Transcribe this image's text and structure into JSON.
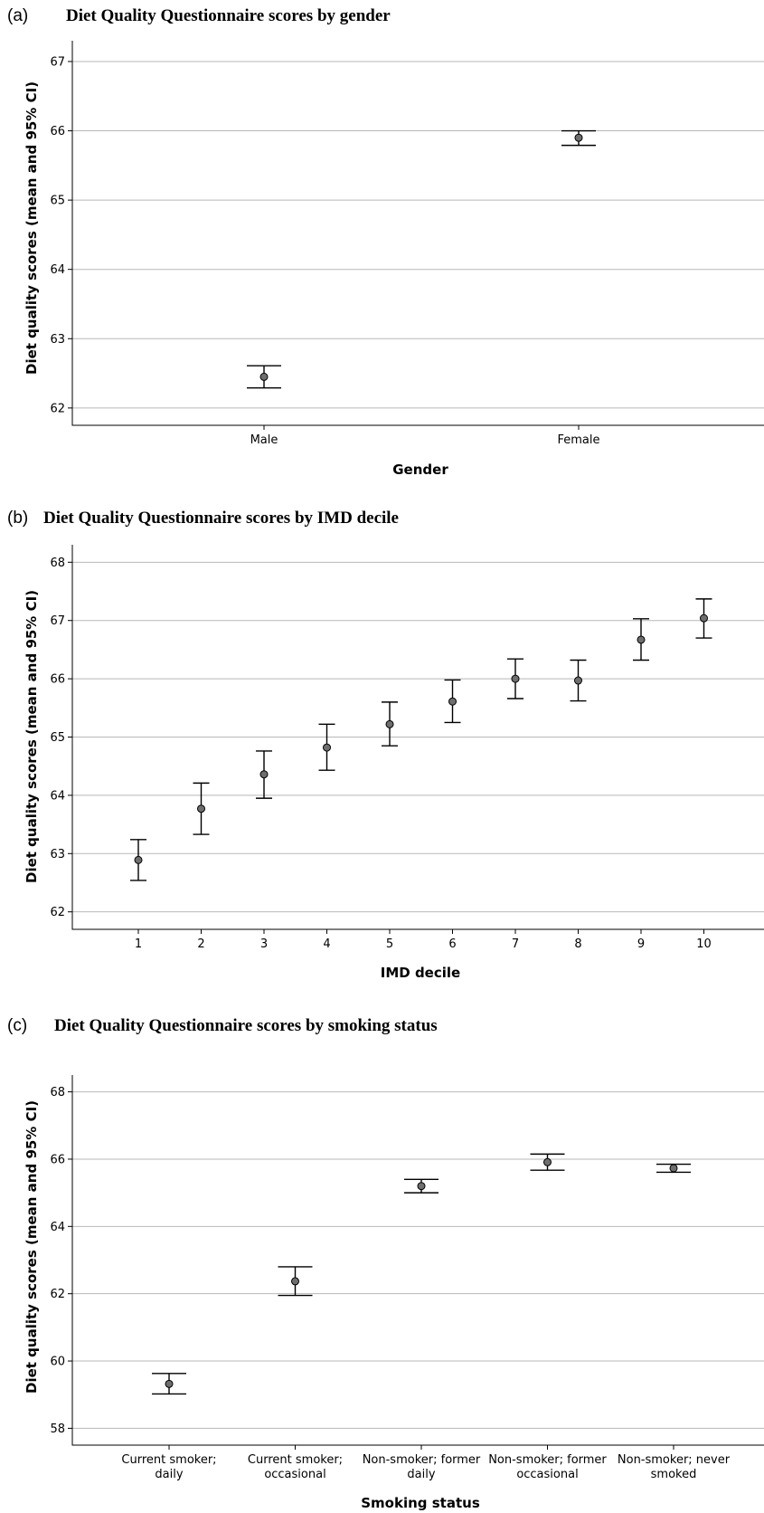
{
  "chart_data": [
    {
      "type": "scatter",
      "panel": "(a)",
      "title": "Diet Quality Questionnaire scores by gender",
      "xlabel": "Gender",
      "ylabel": "Diet quality scores (mean and 95% CI)",
      "ylim": [
        61.75,
        67.3
      ],
      "yticks": [
        62,
        63,
        64,
        65,
        66,
        67
      ],
      "grid": true,
      "categories": [
        "Male",
        "Female"
      ],
      "means": [
        62.45,
        65.9
      ],
      "ci_lower": [
        62.29,
        65.79
      ],
      "ci_upper": [
        62.61,
        66.0
      ]
    },
    {
      "type": "scatter",
      "panel": "(b)",
      "title": "Diet Quality Questionnaire scores by IMD decile",
      "xlabel": "IMD decile",
      "ylabel": "Diet quality scores (mean and 95% CI)",
      "ylim": [
        61.7,
        68.3
      ],
      "yticks": [
        62,
        63,
        64,
        65,
        66,
        67,
        68
      ],
      "grid": true,
      "categories": [
        "1",
        "2",
        "3",
        "4",
        "5",
        "6",
        "7",
        "8",
        "9",
        "10"
      ],
      "means": [
        62.89,
        63.77,
        64.36,
        64.82,
        65.22,
        65.61,
        66.0,
        65.97,
        66.67,
        67.04
      ],
      "ci_lower": [
        62.54,
        63.33,
        63.95,
        64.43,
        64.85,
        65.25,
        65.66,
        65.62,
        66.32,
        66.7
      ],
      "ci_upper": [
        63.24,
        64.21,
        64.76,
        65.22,
        65.6,
        65.98,
        66.34,
        66.32,
        67.03,
        67.37
      ]
    },
    {
      "type": "scatter",
      "panel": "(c)",
      "title": "Diet Quality Questionnaire scores by smoking status",
      "xlabel": "Smoking status",
      "ylabel": "Diet quality scores (mean and 95% CI)",
      "ylim": [
        57.5,
        68.5
      ],
      "yticks": [
        58,
        60,
        62,
        64,
        66,
        68
      ],
      "grid": true,
      "categories": [
        [
          "Current smoker;",
          "daily"
        ],
        [
          "Current smoker;",
          "occasional"
        ],
        [
          "Non-smoker; former",
          "daily"
        ],
        [
          "Non-smoker; former",
          "occasional"
        ],
        [
          "Non-smoker; never",
          "smoked"
        ]
      ],
      "means": [
        59.32,
        62.37,
        65.2,
        65.91,
        65.73
      ],
      "ci_lower": [
        59.02,
        61.95,
        65.0,
        65.67,
        65.61
      ],
      "ci_upper": [
        59.63,
        62.8,
        65.4,
        66.15,
        65.85
      ]
    }
  ]
}
